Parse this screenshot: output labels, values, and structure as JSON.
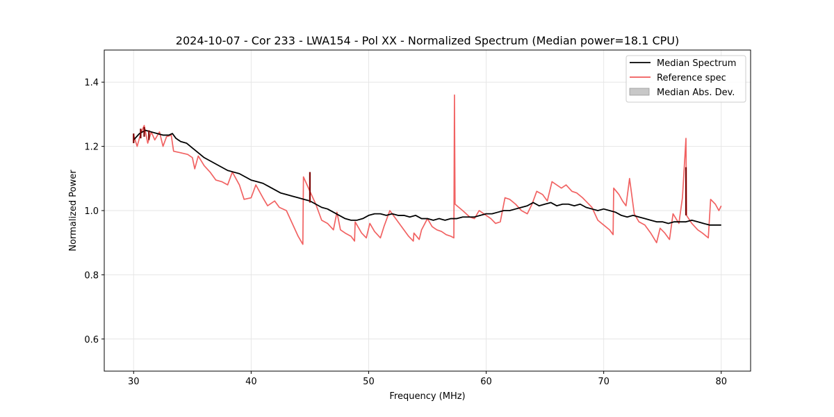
{
  "chart_data": {
    "type": "line",
    "title": "2024-10-07 - Cor 233 - LWA154 - Pol XX - Normalized Spectrum (Median power=18.1 CPU)",
    "xlabel": "Frequency (MHz)",
    "ylabel": "Normalized Power",
    "xlim": [
      27.5,
      82.5
    ],
    "ylim": [
      0.5,
      1.5
    ],
    "xticks": [
      30,
      40,
      50,
      60,
      70,
      80
    ],
    "yticks": [
      0.6,
      0.8,
      1.0,
      1.2,
      1.4
    ],
    "xtick_labels": [
      "30",
      "40",
      "50",
      "60",
      "70",
      "80"
    ],
    "ytick_labels": [
      "0.6",
      "0.8",
      "1.0",
      "1.2",
      "1.4"
    ],
    "grid": true,
    "legend_position": "top-right",
    "legend": [
      "Median Spectrum",
      "Reference spec",
      "Median Abs. Dev."
    ],
    "series": [
      {
        "name": "Median Spectrum",
        "color": "#000000",
        "points": [
          [
            30.0,
            1.22
          ],
          [
            30.5,
            1.24
          ],
          [
            31.0,
            1.25
          ],
          [
            31.5,
            1.245
          ],
          [
            32.0,
            1.24
          ],
          [
            32.5,
            1.235
          ],
          [
            33.0,
            1.235
          ],
          [
            33.3,
            1.24
          ],
          [
            33.6,
            1.225
          ],
          [
            34.0,
            1.215
          ],
          [
            34.5,
            1.21
          ],
          [
            35.0,
            1.195
          ],
          [
            35.5,
            1.18
          ],
          [
            36.0,
            1.165
          ],
          [
            36.5,
            1.155
          ],
          [
            37.0,
            1.145
          ],
          [
            37.5,
            1.135
          ],
          [
            38.0,
            1.125
          ],
          [
            38.5,
            1.12
          ],
          [
            39.0,
            1.115
          ],
          [
            39.5,
            1.105
          ],
          [
            40.0,
            1.095
          ],
          [
            40.5,
            1.09
          ],
          [
            41.0,
            1.085
          ],
          [
            41.5,
            1.075
          ],
          [
            42.0,
            1.065
          ],
          [
            42.5,
            1.055
          ],
          [
            43.0,
            1.05
          ],
          [
            43.5,
            1.045
          ],
          [
            44.0,
            1.04
          ],
          [
            44.5,
            1.035
          ],
          [
            45.0,
            1.03
          ],
          [
            45.5,
            1.02
          ],
          [
            46.0,
            1.01
          ],
          [
            46.5,
            1.005
          ],
          [
            47.0,
            0.995
          ],
          [
            47.5,
            0.985
          ],
          [
            48.0,
            0.975
          ],
          [
            48.5,
            0.97
          ],
          [
            49.0,
            0.97
          ],
          [
            49.5,
            0.975
          ],
          [
            50.0,
            0.985
          ],
          [
            50.5,
            0.99
          ],
          [
            51.0,
            0.99
          ],
          [
            51.5,
            0.985
          ],
          [
            52.0,
            0.99
          ],
          [
            52.5,
            0.985
          ],
          [
            53.0,
            0.985
          ],
          [
            53.5,
            0.98
          ],
          [
            54.0,
            0.985
          ],
          [
            54.5,
            0.975
          ],
          [
            55.0,
            0.975
          ],
          [
            55.5,
            0.97
          ],
          [
            56.0,
            0.975
          ],
          [
            56.5,
            0.97
          ],
          [
            57.0,
            0.975
          ],
          [
            57.5,
            0.975
          ],
          [
            58.0,
            0.98
          ],
          [
            58.5,
            0.98
          ],
          [
            59.0,
            0.98
          ],
          [
            59.5,
            0.985
          ],
          [
            60.0,
            0.99
          ],
          [
            60.5,
            0.99
          ],
          [
            61.0,
            0.995
          ],
          [
            61.5,
            1.0
          ],
          [
            62.0,
            1.0
          ],
          [
            62.5,
            1.005
          ],
          [
            63.0,
            1.01
          ],
          [
            63.5,
            1.015
          ],
          [
            64.0,
            1.025
          ],
          [
            64.5,
            1.015
          ],
          [
            65.0,
            1.02
          ],
          [
            65.5,
            1.025
          ],
          [
            66.0,
            1.015
          ],
          [
            66.5,
            1.02
          ],
          [
            67.0,
            1.02
          ],
          [
            67.5,
            1.015
          ],
          [
            68.0,
            1.02
          ],
          [
            68.5,
            1.01
          ],
          [
            69.0,
            1.005
          ],
          [
            69.5,
            1.0
          ],
          [
            70.0,
            1.005
          ],
          [
            70.5,
            1.0
          ],
          [
            71.0,
            0.995
          ],
          [
            71.5,
            0.985
          ],
          [
            72.0,
            0.98
          ],
          [
            72.5,
            0.985
          ],
          [
            73.0,
            0.98
          ],
          [
            73.5,
            0.975
          ],
          [
            74.0,
            0.97
          ],
          [
            74.5,
            0.965
          ],
          [
            75.0,
            0.965
          ],
          [
            75.5,
            0.96
          ],
          [
            76.0,
            0.965
          ],
          [
            76.5,
            0.965
          ],
          [
            77.0,
            0.965
          ],
          [
            77.5,
            0.97
          ],
          [
            78.0,
            0.965
          ],
          [
            78.5,
            0.96
          ],
          [
            79.0,
            0.955
          ],
          [
            79.5,
            0.955
          ],
          [
            80.0,
            0.955
          ]
        ]
      },
      {
        "name": "Reference spec",
        "color": "#f05a5a",
        "points": [
          [
            30.0,
            1.235
          ],
          [
            30.3,
            1.2
          ],
          [
            30.6,
            1.24
          ],
          [
            30.9,
            1.265
          ],
          [
            31.2,
            1.21
          ],
          [
            31.5,
            1.245
          ],
          [
            31.8,
            1.22
          ],
          [
            32.2,
            1.245
          ],
          [
            32.5,
            1.2
          ],
          [
            32.8,
            1.23
          ],
          [
            33.2,
            1.235
          ],
          [
            33.4,
            1.185
          ],
          [
            34.0,
            1.18
          ],
          [
            34.6,
            1.175
          ],
          [
            35.0,
            1.165
          ],
          [
            35.2,
            1.13
          ],
          [
            35.5,
            1.17
          ],
          [
            36.0,
            1.14
          ],
          [
            36.5,
            1.12
          ],
          [
            37.0,
            1.095
          ],
          [
            37.5,
            1.09
          ],
          [
            38.0,
            1.08
          ],
          [
            38.4,
            1.12
          ],
          [
            39.0,
            1.08
          ],
          [
            39.4,
            1.035
          ],
          [
            40.0,
            1.04
          ],
          [
            40.4,
            1.08
          ],
          [
            41.0,
            1.04
          ],
          [
            41.4,
            1.015
          ],
          [
            42.0,
            1.03
          ],
          [
            42.4,
            1.01
          ],
          [
            43.0,
            1.0
          ],
          [
            43.5,
            0.96
          ],
          [
            44.0,
            0.92
          ],
          [
            44.4,
            0.895
          ],
          [
            44.45,
            1.105
          ],
          [
            45.0,
            1.06
          ],
          [
            45.5,
            1.02
          ],
          [
            46.0,
            0.97
          ],
          [
            46.5,
            0.96
          ],
          [
            47.0,
            0.94
          ],
          [
            47.3,
            0.995
          ],
          [
            47.6,
            0.94
          ],
          [
            48.0,
            0.93
          ],
          [
            48.5,
            0.92
          ],
          [
            48.8,
            0.905
          ],
          [
            48.85,
            0.965
          ],
          [
            49.4,
            0.93
          ],
          [
            49.8,
            0.915
          ],
          [
            50.1,
            0.96
          ],
          [
            50.5,
            0.935
          ],
          [
            51.0,
            0.915
          ],
          [
            51.3,
            0.95
          ],
          [
            51.8,
            1.0
          ],
          [
            52.2,
            0.98
          ],
          [
            52.6,
            0.96
          ],
          [
            53.0,
            0.94
          ],
          [
            53.4,
            0.92
          ],
          [
            53.8,
            0.905
          ],
          [
            53.85,
            0.93
          ],
          [
            54.3,
            0.91
          ],
          [
            54.5,
            0.94
          ],
          [
            55.0,
            0.975
          ],
          [
            55.4,
            0.95
          ],
          [
            55.8,
            0.94
          ],
          [
            56.2,
            0.935
          ],
          [
            56.6,
            0.925
          ],
          [
            57.0,
            0.92
          ],
          [
            57.25,
            0.915
          ],
          [
            57.3,
            1.36
          ],
          [
            57.35,
            1.02
          ],
          [
            58.0,
            1.0
          ],
          [
            58.6,
            0.98
          ],
          [
            59.0,
            0.975
          ],
          [
            59.4,
            1.0
          ],
          [
            60.0,
            0.985
          ],
          [
            60.4,
            0.975
          ],
          [
            60.8,
            0.96
          ],
          [
            61.2,
            0.965
          ],
          [
            61.6,
            1.04
          ],
          [
            62.0,
            1.035
          ],
          [
            62.5,
            1.02
          ],
          [
            63.0,
            1.0
          ],
          [
            63.5,
            0.99
          ],
          [
            63.9,
            1.02
          ],
          [
            64.3,
            1.06
          ],
          [
            64.8,
            1.05
          ],
          [
            65.2,
            1.03
          ],
          [
            65.6,
            1.09
          ],
          [
            66.0,
            1.08
          ],
          [
            66.4,
            1.07
          ],
          [
            66.8,
            1.08
          ],
          [
            67.3,
            1.06
          ],
          [
            67.7,
            1.055
          ],
          [
            68.2,
            1.04
          ],
          [
            68.6,
            1.025
          ],
          [
            69.0,
            1.01
          ],
          [
            69.5,
            0.97
          ],
          [
            70.0,
            0.955
          ],
          [
            70.5,
            0.94
          ],
          [
            70.8,
            0.925
          ],
          [
            70.85,
            1.07
          ],
          [
            71.3,
            1.05
          ],
          [
            71.6,
            1.03
          ],
          [
            71.9,
            1.015
          ],
          [
            72.2,
            1.1
          ],
          [
            72.6,
            0.99
          ],
          [
            73.0,
            0.965
          ],
          [
            73.5,
            0.955
          ],
          [
            74.0,
            0.93
          ],
          [
            74.5,
            0.9
          ],
          [
            74.8,
            0.945
          ],
          [
            75.2,
            0.93
          ],
          [
            75.6,
            0.91
          ],
          [
            75.9,
            0.99
          ],
          [
            76.4,
            0.96
          ],
          [
            76.7,
            1.04
          ],
          [
            77.0,
            1.225
          ],
          [
            77.05,
            0.985
          ],
          [
            77.5,
            0.96
          ],
          [
            78.0,
            0.94
          ],
          [
            78.4,
            0.93
          ],
          [
            78.9,
            0.915
          ],
          [
            79.1,
            1.035
          ],
          [
            79.5,
            1.02
          ],
          [
            79.8,
            1.0
          ],
          [
            80.0,
            1.015
          ]
        ]
      },
      {
        "name": "Median Abs. Dev.",
        "color": "#808080",
        "points": []
      }
    ],
    "highlights": {
      "color": "#7a0000",
      "segments": [
        [
          [
            30.0,
            1.21
          ],
          [
            30.0,
            1.24
          ]
        ],
        [
          [
            30.6,
            1.225
          ],
          [
            30.6,
            1.255
          ]
        ],
        [
          [
            30.9,
            1.23
          ],
          [
            30.9,
            1.26
          ]
        ],
        [
          [
            31.3,
            1.22
          ],
          [
            31.3,
            1.25
          ]
        ],
        [
          [
            45.0,
            1.025
          ],
          [
            45.0,
            1.12
          ]
        ],
        [
          [
            77.0,
            0.985
          ],
          [
            77.0,
            1.135
          ]
        ]
      ]
    }
  }
}
